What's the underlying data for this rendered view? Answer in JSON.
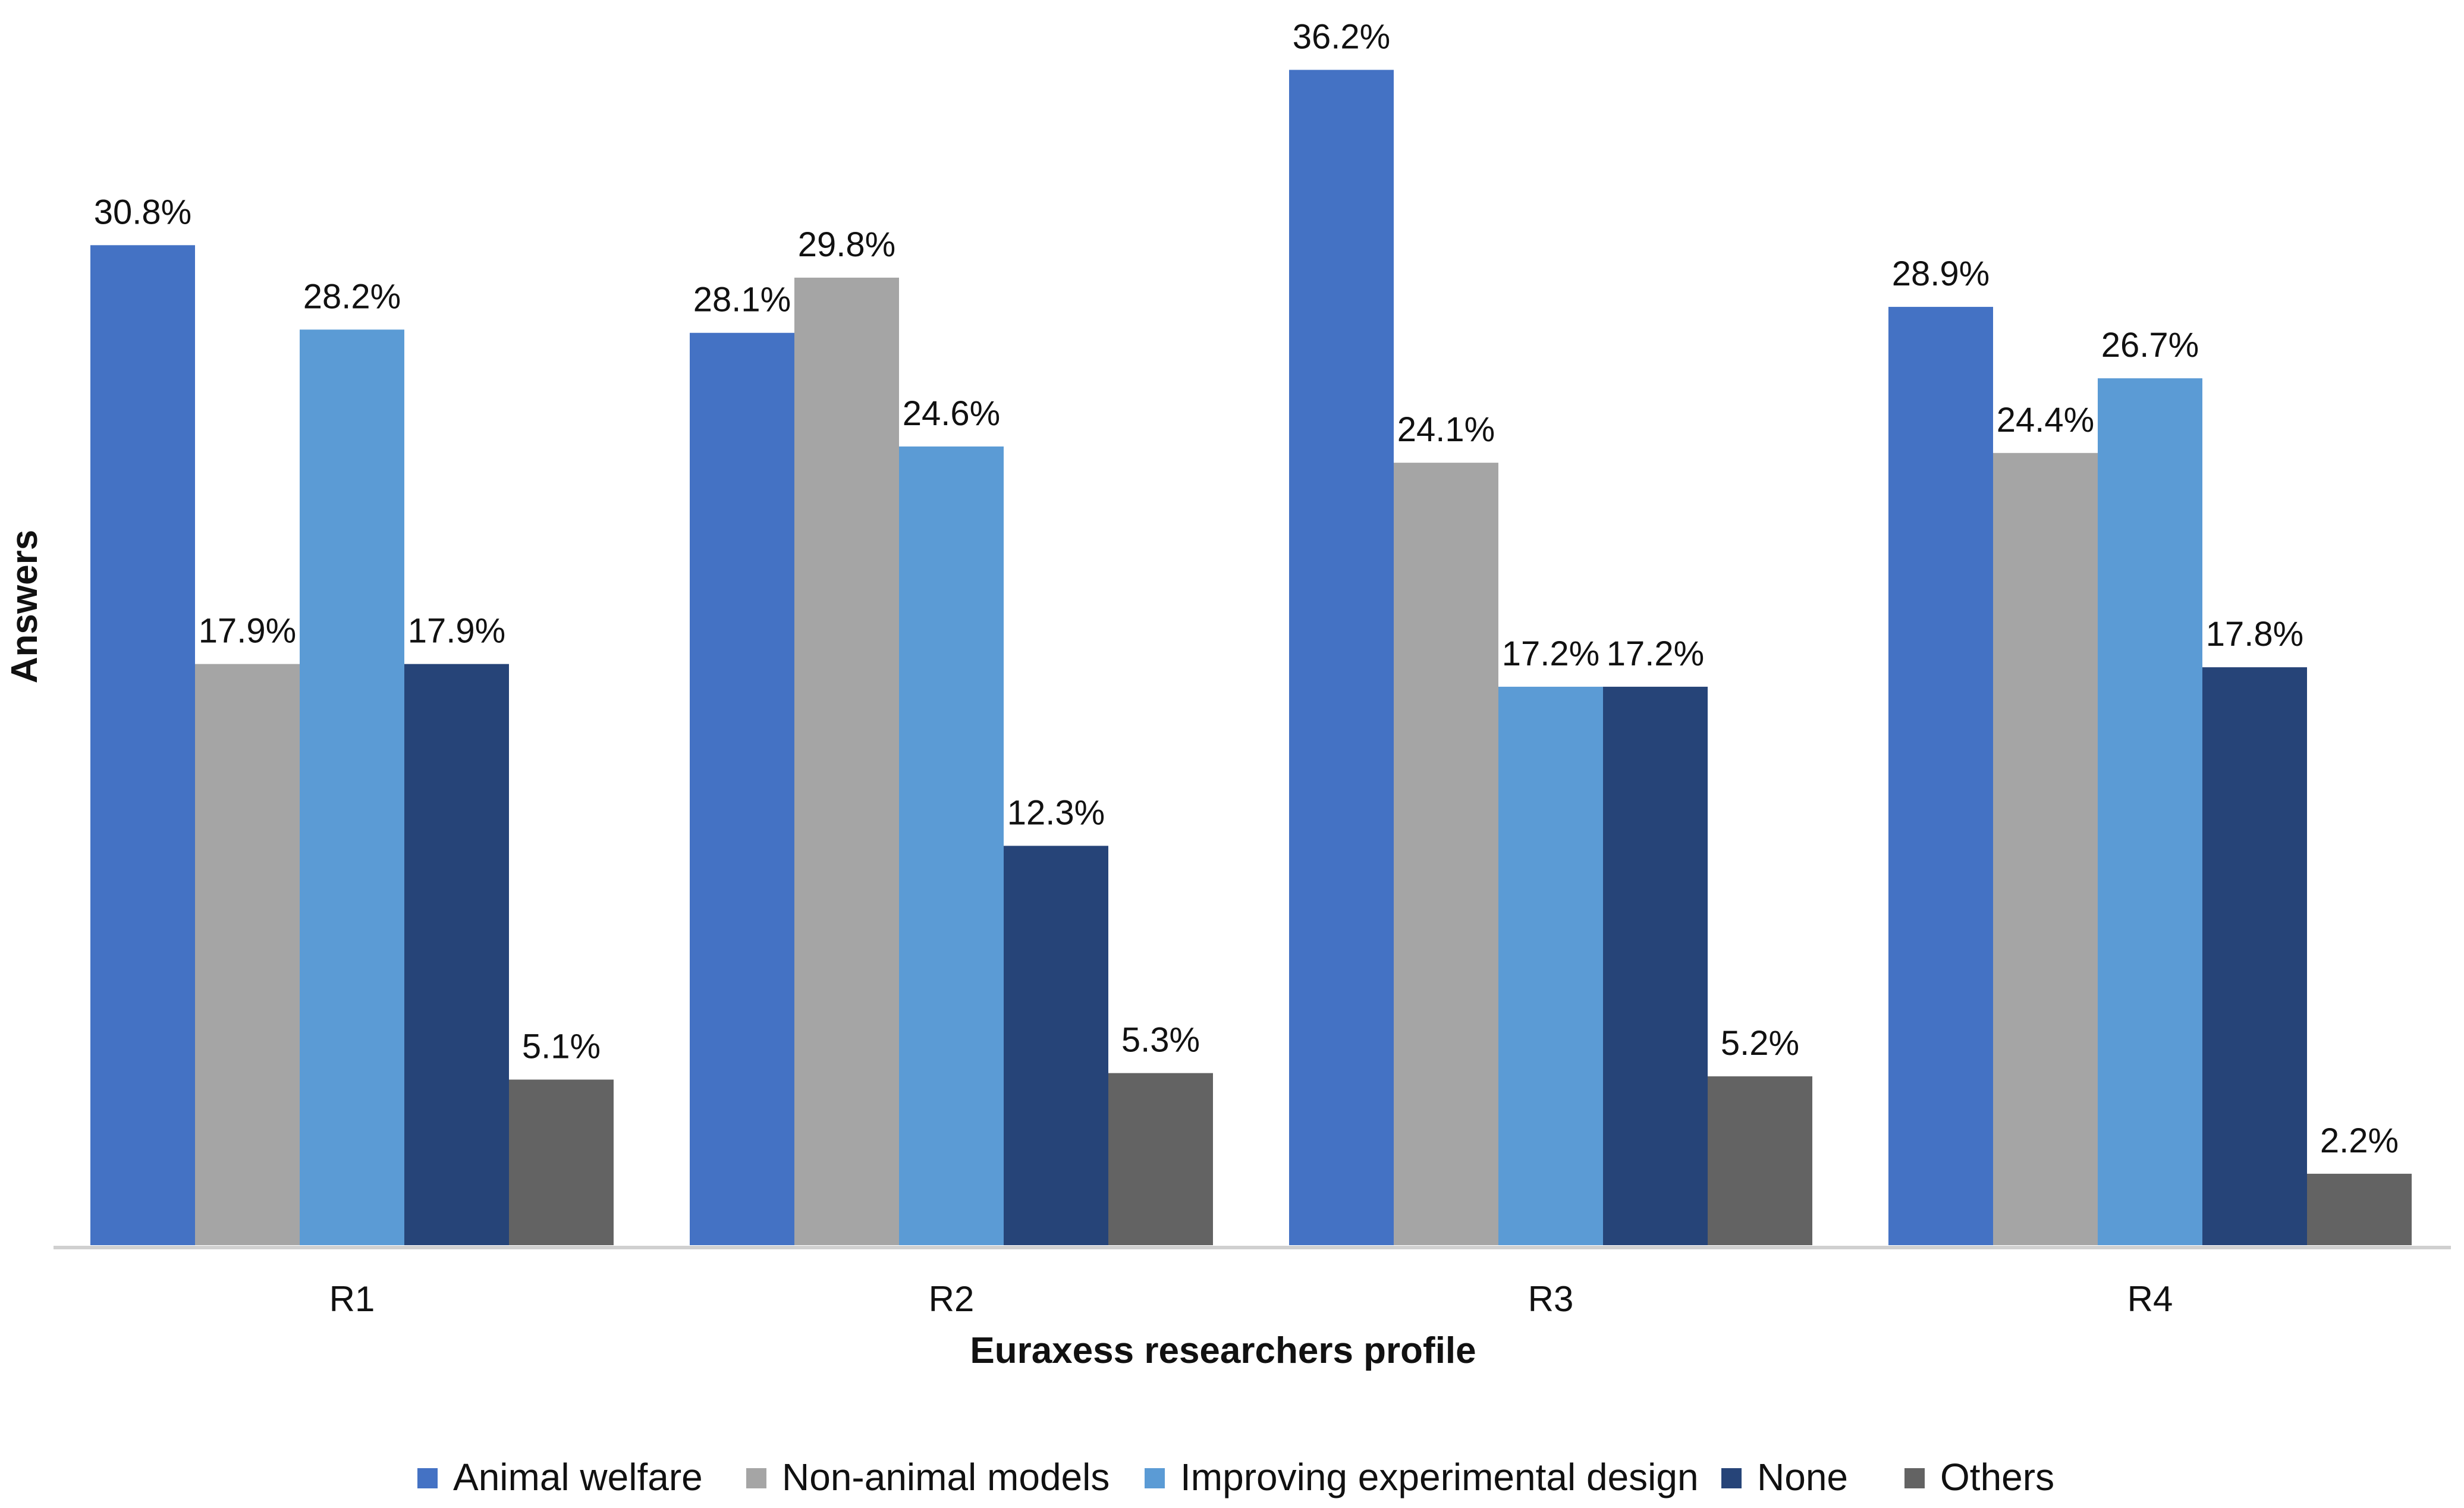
{
  "chart_data": {
    "type": "bar",
    "title": "",
    "xlabel": "Euraxess researchers profile",
    "ylabel": "Answers",
    "categories": [
      "R1",
      "R2",
      "R3",
      "R4"
    ],
    "series": [
      {
        "name": "Animal welfare",
        "color": "#4472c4",
        "values": [
          30.8,
          28.1,
          36.2,
          28.9
        ],
        "labels": [
          "30.8%",
          "28.1%",
          "36.2%",
          "28.9%"
        ]
      },
      {
        "name": "Non-animal models",
        "color": "#a5a5a5",
        "values": [
          17.9,
          29.8,
          24.1,
          24.4
        ],
        "labels": [
          "17.9%",
          "29.8%",
          "24.1%",
          "24.4%"
        ]
      },
      {
        "name": "Improving experimental design",
        "color": "#5b9bd5",
        "values": [
          28.2,
          24.6,
          17.2,
          26.7
        ],
        "labels": [
          "28.2%",
          "24.6%",
          "17.2%",
          "26.7%"
        ]
      },
      {
        "name": "None",
        "color": "#264478",
        "values": [
          17.9,
          12.3,
          17.2,
          17.8
        ],
        "labels": [
          "17.9%",
          "12.3%",
          "17.2%",
          "17.8%"
        ]
      },
      {
        "name": "Others",
        "color": "#636363",
        "values": [
          5.1,
          5.3,
          5.2,
          2.2
        ],
        "labels": [
          "5.1%",
          "5.3%",
          "5.2%",
          "2.2%"
        ]
      }
    ],
    "ylim": [
      0,
      38
    ],
    "grid": false,
    "legend": "bottom"
  }
}
